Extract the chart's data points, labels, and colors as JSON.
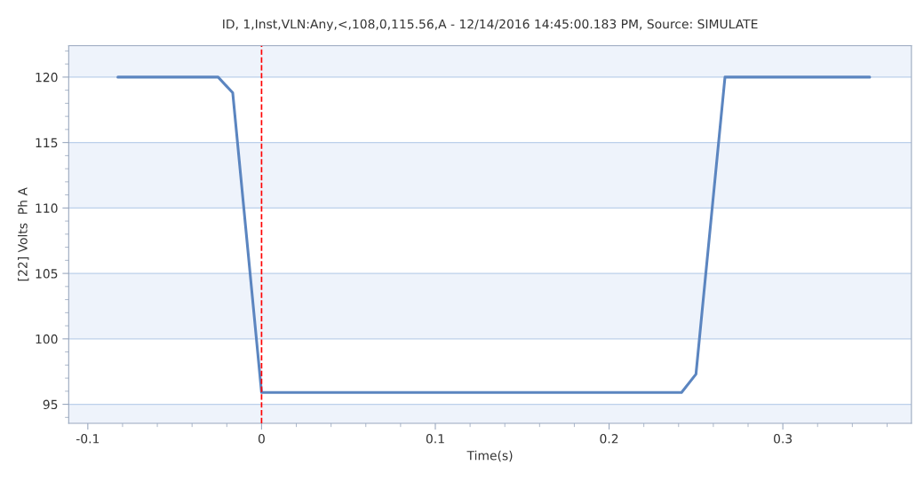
{
  "chart_data": {
    "type": "line",
    "title": "ID, 1,Inst,VLN:Any,<,108,0,115.56,A - 12/14/2016 14:45:00.183 PM, Source: SIMULATE",
    "xlabel": "Time(s)",
    "ylabel": "[22] Volts  Ph A",
    "x": [
      -0.0827,
      -0.025,
      -0.0166,
      0,
      0.2417,
      0.25,
      0.2667,
      0.35
    ],
    "series": [
      {
        "color": "#5b85c0",
        "values": [
          120,
          120,
          118.8,
          95.9,
          95.9,
          97.3,
          120,
          120
        ]
      }
    ],
    "xlim": [
      -0.111,
      0.374
    ],
    "ylim": [
      93.55,
      122.4
    ],
    "xticks": [
      -0.1,
      0,
      0.1,
      0.2,
      0.3
    ],
    "yticks": [
      95,
      100,
      105,
      110,
      115,
      120
    ],
    "grid": "y",
    "marker": "none",
    "line_style": "solid",
    "legend": false,
    "ref_lines": [
      {
        "axis": "x",
        "value": 0,
        "color": "#ff0000",
        "line_style": "dashed"
      }
    ],
    "bands": [
      {
        "axis": "y",
        "from": 120,
        "to": 122.4,
        "color": "#eef3fb"
      },
      {
        "axis": "y",
        "from": 110,
        "to": 115,
        "color": "#eef3fb"
      },
      {
        "axis": "y",
        "from": 100,
        "to": 105,
        "color": "#eef3fb"
      },
      {
        "axis": "y",
        "from": 93.55,
        "to": 95,
        "color": "#eef3fb"
      }
    ]
  }
}
